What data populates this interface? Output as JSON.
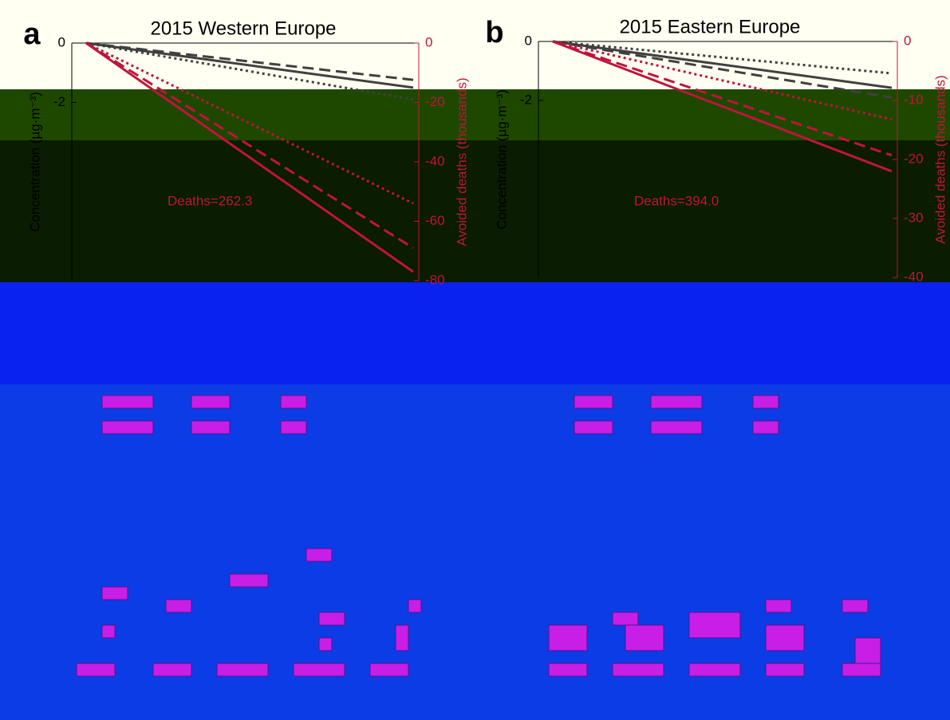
{
  "chart_data": [
    {
      "type": "line",
      "panel_label": "a",
      "title": "2015 Western Europe",
      "y_label": "Concentration (µg·m⁻³)",
      "y2_label": "Avoided deaths (thousands)",
      "annotation": "Deaths=262.3",
      "categories": [
        null,
        null
      ],
      "ylim": [
        -8,
        0
      ],
      "yticks": [
        0,
        -2
      ],
      "y2lim": [
        -80,
        0
      ],
      "y2ticks": [
        0,
        -20,
        -40,
        -60,
        -80
      ],
      "series": [
        {
          "color": "#404040",
          "dash": "dashed",
          "values": [
            0,
            -1.24
          ]
        },
        {
          "color": "#404040",
          "dash": "solid",
          "values": [
            0,
            -1.5
          ]
        },
        {
          "color": "#404040",
          "dash": "dotted",
          "values": [
            0,
            -1.9
          ]
        },
        {
          "color": "#c0143c",
          "dash": "dotted",
          "axis": "y2",
          "values": [
            0,
            -54
          ]
        },
        {
          "color": "#c0143c",
          "dash": "dashed",
          "axis": "y2",
          "values": [
            0,
            -69
          ]
        },
        {
          "color": "#c0143c",
          "dash": "solid",
          "axis": "y2",
          "values": [
            0,
            -77
          ]
        }
      ]
    },
    {
      "type": "line",
      "panel_label": "b",
      "title": "2015 Eastern Europe",
      "y_label": "Concentration (µg·m⁻³)",
      "y2_label": "Avoided deaths (thousands)",
      "annotation": "Deaths=394.0",
      "categories": [
        null,
        null
      ],
      "ylim": [
        -8,
        0
      ],
      "yticks": [
        0,
        -2
      ],
      "y2lim": [
        -40,
        0
      ],
      "y2ticks": [
        0,
        -10,
        -20,
        -30,
        -40
      ],
      "series": [
        {
          "color": "#404040",
          "dash": "dotted",
          "values": [
            0,
            -1.08
          ]
        },
        {
          "color": "#404040",
          "dash": "solid",
          "values": [
            0,
            -1.57
          ]
        },
        {
          "color": "#404040",
          "dash": "dashed",
          "values": [
            0,
            -1.9
          ]
        },
        {
          "color": "#c0143c",
          "dash": "dotted",
          "axis": "y2",
          "values": [
            0,
            -13.2
          ]
        },
        {
          "color": "#c0143c",
          "dash": "dashed",
          "axis": "y2",
          "values": [
            0,
            -19.3
          ]
        },
        {
          "color": "#c0143c",
          "dash": "solid",
          "axis": "y2",
          "values": [
            0,
            -22
          ]
        }
      ]
    }
  ]
}
